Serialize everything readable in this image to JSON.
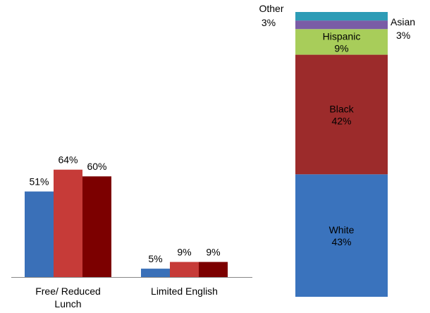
{
  "chart_data": [
    {
      "type": "bar",
      "categories": [
        "Free/ Reduced Lunch",
        "Limited English"
      ],
      "category_lines": [
        [
          "Free/ Reduced",
          "Lunch"
        ],
        [
          "Limited English"
        ]
      ],
      "series": [
        {
          "values": [
            51,
            5
          ],
          "labels": [
            "51%",
            "5%"
          ],
          "color": "#3a70b8"
        },
        {
          "values": [
            64,
            9
          ],
          "labels": [
            "64%",
            "9%"
          ],
          "color": "#c63b38"
        },
        {
          "values": [
            60,
            9
          ],
          "labels": [
            "60%",
            "9%"
          ],
          "color": "#7c0000"
        }
      ],
      "ylim": [
        0,
        100
      ],
      "grid": false,
      "legend": "none"
    },
    {
      "type": "bar",
      "stacked": true,
      "ylim": [
        0,
        100
      ],
      "segments": [
        {
          "name": "White",
          "value": 43,
          "label": "43%",
          "color": "#3a73bd",
          "label_position": "inside"
        },
        {
          "name": "Black",
          "value": 42,
          "label": "42%",
          "color": "#9c2b2b",
          "label_position": "inside"
        },
        {
          "name": "Hispanic",
          "value": 9,
          "label": "9%",
          "color": "#a8cd5a",
          "label_position": "inside"
        },
        {
          "name": "Asian",
          "value": 3,
          "label": "3%",
          "color": "#7a5ca6",
          "label_position": "right"
        },
        {
          "name": "Other",
          "value": 3,
          "label": "3%",
          "color": "#2d9cb6",
          "label_position": "left"
        }
      ]
    }
  ]
}
